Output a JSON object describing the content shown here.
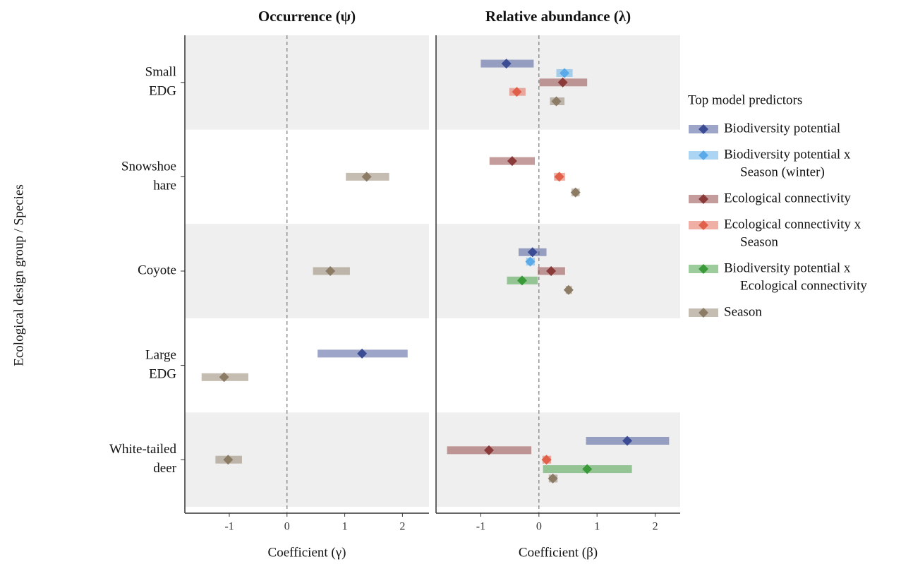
{
  "chart_data": {
    "type": "forest",
    "y_label": "Ecological design group / Species",
    "legend_title": "Top model predictors",
    "categories": [
      [
        "Small",
        "EDG"
      ],
      [
        "Snowshoe",
        "hare"
      ],
      [
        "Coyote"
      ],
      [
        "Large",
        "EDG"
      ],
      [
        "White-tailed",
        "deer"
      ]
    ],
    "series": [
      {
        "name": [
          "Biodiversity potential"
        ],
        "color": "#3b4c94"
      },
      {
        "name": [
          "Biodiversity potential x",
          "Season (winter)"
        ],
        "color": "#5aa9e8"
      },
      {
        "name": [
          "Ecological connectivity"
        ],
        "color": "#8b3a3a"
      },
      {
        "name": [
          "Ecological connectivity x",
          "Season"
        ],
        "color": "#e0604a"
      },
      {
        "name": [
          "Biodiversity potential x",
          "Ecological connectivity"
        ],
        "color": "#3a9a3a"
      },
      {
        "name": [
          "Season"
        ],
        "color": "#8c7b65"
      }
    ],
    "panels": [
      {
        "title": "Occurrence (ψ)",
        "x_label": "Coefficient (γ)",
        "xlim": [
          -1.77,
          2.46
        ],
        "xticks": [
          -1,
          0,
          1,
          2
        ],
        "series": [
          {
            "values": [
              null,
              null,
              null,
              1.3,
              null
            ],
            "lower": [
              null,
              null,
              null,
              0.53,
              null
            ],
            "upper": [
              null,
              null,
              null,
              2.09,
              null
            ]
          },
          {
            "values": [
              null,
              null,
              null,
              null,
              null
            ],
            "lower": [
              null,
              null,
              null,
              null,
              null
            ],
            "upper": [
              null,
              null,
              null,
              null,
              null
            ]
          },
          {
            "values": [
              null,
              null,
              null,
              null,
              null
            ],
            "lower": [
              null,
              null,
              null,
              null,
              null
            ],
            "upper": [
              null,
              null,
              null,
              null,
              null
            ]
          },
          {
            "values": [
              null,
              null,
              null,
              null,
              null
            ],
            "lower": [
              null,
              null,
              null,
              null,
              null
            ],
            "upper": [
              null,
              null,
              null,
              null,
              null
            ]
          },
          {
            "values": [
              null,
              null,
              null,
              null,
              null
            ],
            "lower": [
              null,
              null,
              null,
              null,
              null
            ],
            "upper": [
              null,
              null,
              null,
              null,
              null
            ]
          },
          {
            "values": [
              null,
              1.38,
              0.75,
              -1.09,
              -1.02
            ],
            "lower": [
              null,
              1.02,
              0.45,
              -1.48,
              -1.24
            ],
            "upper": [
              null,
              1.77,
              1.09,
              -0.67,
              -0.78
            ]
          }
        ]
      },
      {
        "title": "Relative abundance (λ)",
        "x_label": "Coefficient (β)",
        "xlim": [
          -1.77,
          2.43
        ],
        "xticks": [
          -1,
          0,
          1,
          2
        ],
        "series": [
          {
            "values": [
              -0.56,
              null,
              -0.11,
              null,
              1.52
            ],
            "lower": [
              -1.0,
              null,
              -0.35,
              null,
              0.81
            ],
            "upper": [
              -0.09,
              null,
              0.13,
              null,
              2.24
            ]
          },
          {
            "values": [
              0.44,
              null,
              -0.15,
              null,
              null
            ],
            "lower": [
              0.3,
              null,
              -0.22,
              null,
              null
            ],
            "upper": [
              0.58,
              null,
              -0.07,
              null,
              null
            ]
          },
          {
            "values": [
              0.41,
              -0.46,
              0.21,
              null,
              -0.86
            ],
            "lower": [
              0.01,
              -0.85,
              -0.02,
              null,
              -1.58
            ],
            "upper": [
              0.83,
              -0.07,
              0.45,
              null,
              -0.13
            ]
          },
          {
            "values": [
              -0.38,
              0.35,
              null,
              null,
              0.13
            ],
            "lower": [
              -0.51,
              0.26,
              null,
              null,
              0.06
            ],
            "upper": [
              -0.23,
              0.45,
              null,
              null,
              0.21
            ]
          },
          {
            "values": [
              null,
              null,
              -0.29,
              null,
              0.83
            ],
            "lower": [
              null,
              null,
              -0.55,
              null,
              0.07
            ],
            "upper": [
              null,
              null,
              -0.02,
              null,
              1.6
            ]
          },
          {
            "values": [
              0.3,
              0.63,
              0.51,
              null,
              0.24
            ],
            "lower": [
              0.19,
              0.56,
              0.46,
              null,
              0.17
            ],
            "upper": [
              0.44,
              0.7,
              0.57,
              null,
              0.32
            ]
          }
        ]
      }
    ]
  }
}
